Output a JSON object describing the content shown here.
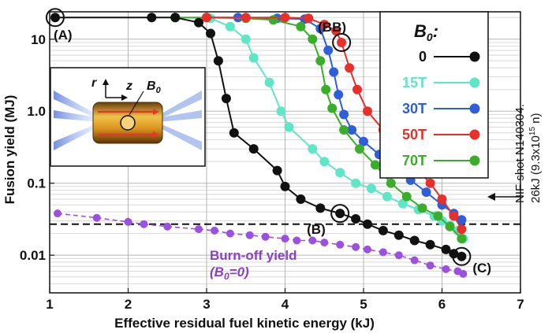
{
  "chart_data": {
    "type": "line",
    "xlabel": "Effective residual fuel kinetic energy (kJ)",
    "ylabel": "Fusion yield (MJ)",
    "xlim": [
      1,
      7
    ],
    "ylim": [
      0.003,
      24
    ],
    "yscale": "log",
    "x_ticks": [
      "1",
      "2",
      "3",
      "4",
      "5",
      "6",
      "7"
    ],
    "y_ticks": [
      {
        "value": 10,
        "label": "10"
      },
      {
        "value": 1,
        "label": "1.0"
      },
      {
        "value": 0.1,
        "label": "0.1"
      },
      {
        "value": 0.01,
        "label": "0.01"
      }
    ],
    "grid": true,
    "legend": {
      "title": "B",
      "title_sub": "0",
      "title_suffix": ":",
      "placement": "top-right",
      "entries": [
        {
          "label": "0",
          "color": "#111111"
        },
        {
          "label": "15T",
          "color": "#5ee6c6"
        },
        {
          "label": "30T",
          "color": "#2f5fd8"
        },
        {
          "label": "50T",
          "color": "#e8302a"
        },
        {
          "label": "70T",
          "color": "#3aad2a"
        }
      ]
    },
    "series": [
      {
        "name": "0",
        "color": "#111111",
        "points": [
          [
            1.07,
            20
          ],
          [
            2.3,
            20
          ],
          [
            2.6,
            20
          ],
          [
            2.9,
            17
          ],
          [
            3.05,
            12
          ],
          [
            3.15,
            5
          ],
          [
            3.25,
            1.5
          ],
          [
            3.35,
            0.5
          ],
          [
            3.6,
            0.3
          ],
          [
            3.9,
            0.15
          ],
          [
            4.0,
            0.09
          ],
          [
            4.2,
            0.06
          ],
          [
            4.45,
            0.045
          ],
          [
            4.7,
            0.038
          ],
          [
            4.9,
            0.032
          ],
          [
            5.05,
            0.027
          ],
          [
            5.25,
            0.022
          ],
          [
            5.45,
            0.019
          ],
          [
            5.65,
            0.016
          ],
          [
            5.85,
            0.014
          ],
          [
            6.05,
            0.012
          ],
          [
            6.15,
            0.0105
          ],
          [
            6.25,
            0.0096
          ]
        ]
      },
      {
        "name": "15T",
        "color": "#5ee6c6",
        "points": [
          [
            2.6,
            20
          ],
          [
            3.05,
            19.5
          ],
          [
            3.3,
            15
          ],
          [
            3.5,
            10
          ],
          [
            3.6,
            5.5
          ],
          [
            3.8,
            2.5
          ],
          [
            3.95,
            1.0
          ],
          [
            4.05,
            0.6
          ],
          [
            4.35,
            0.3
          ],
          [
            4.5,
            0.2
          ],
          [
            4.7,
            0.14
          ],
          [
            4.9,
            0.1
          ],
          [
            5.1,
            0.085
          ],
          [
            5.3,
            0.065
          ],
          [
            5.5,
            0.052
          ],
          [
            5.7,
            0.043
          ],
          [
            5.9,
            0.035
          ],
          [
            6.0,
            0.03
          ],
          [
            6.1,
            0.026
          ],
          [
            6.2,
            0.022
          ],
          [
            6.27,
            0.017
          ]
        ]
      },
      {
        "name": "30T",
        "color": "#2f5fd8",
        "points": [
          [
            3.0,
            20
          ],
          [
            3.4,
            20
          ],
          [
            3.9,
            19.5
          ],
          [
            4.25,
            19
          ],
          [
            4.45,
            14
          ],
          [
            4.55,
            7
          ],
          [
            4.62,
            3.5
          ],
          [
            4.68,
            1.7
          ],
          [
            4.75,
            0.9
          ],
          [
            4.85,
            0.55
          ],
          [
            5.0,
            0.38
          ],
          [
            5.2,
            0.25
          ],
          [
            5.4,
            0.17
          ],
          [
            5.6,
            0.11
          ],
          [
            5.8,
            0.075
          ],
          [
            6.0,
            0.05
          ],
          [
            6.15,
            0.038
          ],
          [
            6.25,
            0.031
          ]
        ]
      },
      {
        "name": "50T",
        "color": "#e8302a",
        "points": [
          [
            3.0,
            20
          ],
          [
            3.5,
            20
          ],
          [
            4.0,
            20
          ],
          [
            4.3,
            19.5
          ],
          [
            4.5,
            16
          ],
          [
            4.65,
            13
          ],
          [
            4.72,
            9
          ],
          [
            4.82,
            4
          ],
          [
            4.92,
            2
          ],
          [
            5.05,
            1.0
          ],
          [
            5.25,
            0.55
          ],
          [
            5.45,
            0.3
          ],
          [
            5.65,
            0.17
          ],
          [
            5.85,
            0.1
          ],
          [
            6.0,
            0.06
          ],
          [
            6.15,
            0.035
          ],
          [
            6.25,
            0.023
          ]
        ]
      },
      {
        "name": "70T",
        "color": "#3aad2a",
        "points": [
          [
            2.6,
            20
          ],
          [
            3.0,
            20
          ],
          [
            3.5,
            19.5
          ],
          [
            3.85,
            18.5
          ],
          [
            4.2,
            15
          ],
          [
            4.35,
            10
          ],
          [
            4.45,
            5
          ],
          [
            4.52,
            2.0
          ],
          [
            4.6,
            1.1
          ],
          [
            4.75,
            0.55
          ],
          [
            4.95,
            0.3
          ],
          [
            5.15,
            0.18
          ],
          [
            5.35,
            0.1
          ],
          [
            5.55,
            0.065
          ],
          [
            5.75,
            0.045
          ],
          [
            5.95,
            0.035
          ],
          [
            6.1,
            0.025
          ],
          [
            6.25,
            0.017
          ]
        ]
      },
      {
        "name": "burn-off",
        "color": "#9b50e0",
        "dashed": true,
        "points": [
          [
            1.1,
            0.038
          ],
          [
            1.6,
            0.033
          ],
          [
            2.0,
            0.029
          ],
          [
            2.2,
            0.027
          ],
          [
            2.5,
            0.025
          ],
          [
            2.9,
            0.023
          ],
          [
            3.1,
            0.022
          ],
          [
            3.3,
            0.02
          ],
          [
            3.55,
            0.019
          ],
          [
            3.75,
            0.018
          ],
          [
            4.0,
            0.017
          ],
          [
            4.15,
            0.016
          ],
          [
            4.35,
            0.016
          ],
          [
            4.5,
            0.015
          ],
          [
            4.7,
            0.014
          ],
          [
            4.9,
            0.013
          ],
          [
            5.05,
            0.012
          ],
          [
            5.25,
            0.011
          ],
          [
            5.45,
            0.01
          ],
          [
            5.65,
            0.0085
          ],
          [
            5.85,
            0.0072
          ],
          [
            6.05,
            0.0064
          ],
          [
            6.2,
            0.006
          ],
          [
            6.27,
            0.0055
          ]
        ]
      }
    ],
    "reference_line": {
      "y": 0.027,
      "label_line1": "NIF shot N140304.",
      "label_line2": "26kJ (9.3x10",
      "label_sup": "15",
      "label_end": " n)"
    },
    "annotations": [
      {
        "text": "(A)",
        "x": 1.07,
        "y": 20
      },
      {
        "text": "(BB)",
        "x": 4.72,
        "y": 9
      },
      {
        "text": "(B)",
        "x": 4.7,
        "y": 0.038
      },
      {
        "text": "(C)",
        "x": 6.25,
        "y": 0.0096
      }
    ],
    "burnoff_label": {
      "line1": "Burn-off yield",
      "line2_pre": "(B",
      "line2_sub": "0",
      "line2_post": "=0)"
    },
    "inset": {
      "r": "r",
      "z": "z",
      "b": "B",
      "b_sub": "0"
    }
  }
}
